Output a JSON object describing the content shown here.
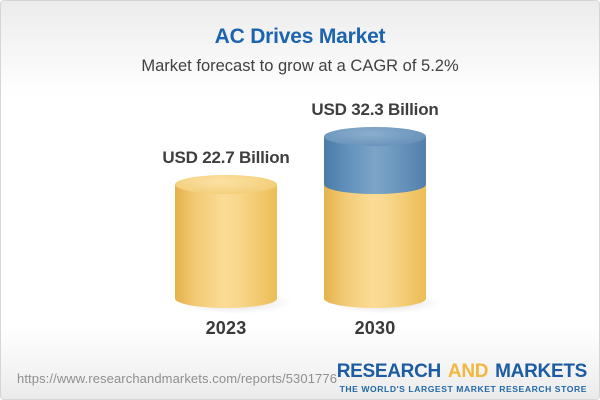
{
  "header": {
    "title": "AC Drives Market",
    "subtitle": "Market forecast to grow at a CAGR of 5.2%"
  },
  "chart_data": {
    "type": "bar",
    "variant": "3d-cylinder",
    "title": "AC Drives Market",
    "subtitle": "Market forecast to grow at a CAGR of 5.2%",
    "unit": "USD Billion",
    "cagr_percent": 5.2,
    "categories": [
      "2023",
      "2030"
    ],
    "values": [
      22.7,
      32.3
    ],
    "bar_labels": [
      "USD 22.7 Billion",
      "USD 32.3 Billion"
    ],
    "legend_visible": false,
    "axes_visible": false,
    "bars": [
      {
        "category": "2023",
        "label": "USD 22.7 Billion",
        "total": 22.7,
        "segments": [
          {
            "name": "2023 market size",
            "value": 22.7,
            "color": "#F3CD79"
          }
        ]
      },
      {
        "category": "2030",
        "label": "USD 32.3 Billion",
        "total": 32.3,
        "segments": [
          {
            "name": "2023 market size",
            "value": 22.7,
            "color": "#F3CD79"
          },
          {
            "name": "forecast growth to 2030",
            "value": 9.6,
            "color": "#6793BC"
          }
        ]
      }
    ]
  },
  "footer": {
    "url": "https://www.researchandmarkets.com/reports/5301776",
    "logo": {
      "word1": "RESEARCH",
      "word2": "AND",
      "word3": "MARKETS",
      "tagline": "THE WORLD'S LARGEST MARKET RESEARCH STORE"
    }
  },
  "colors": {
    "title_blue": "#1D64AE",
    "label_dark": "#3E3E40",
    "cylinder_yellow": "#F3CD79",
    "cylinder_blue": "#6793BC",
    "logo_blue": "#1C5CA3",
    "logo_gold": "#F2B740",
    "url_gray": "#8F8F8F"
  }
}
